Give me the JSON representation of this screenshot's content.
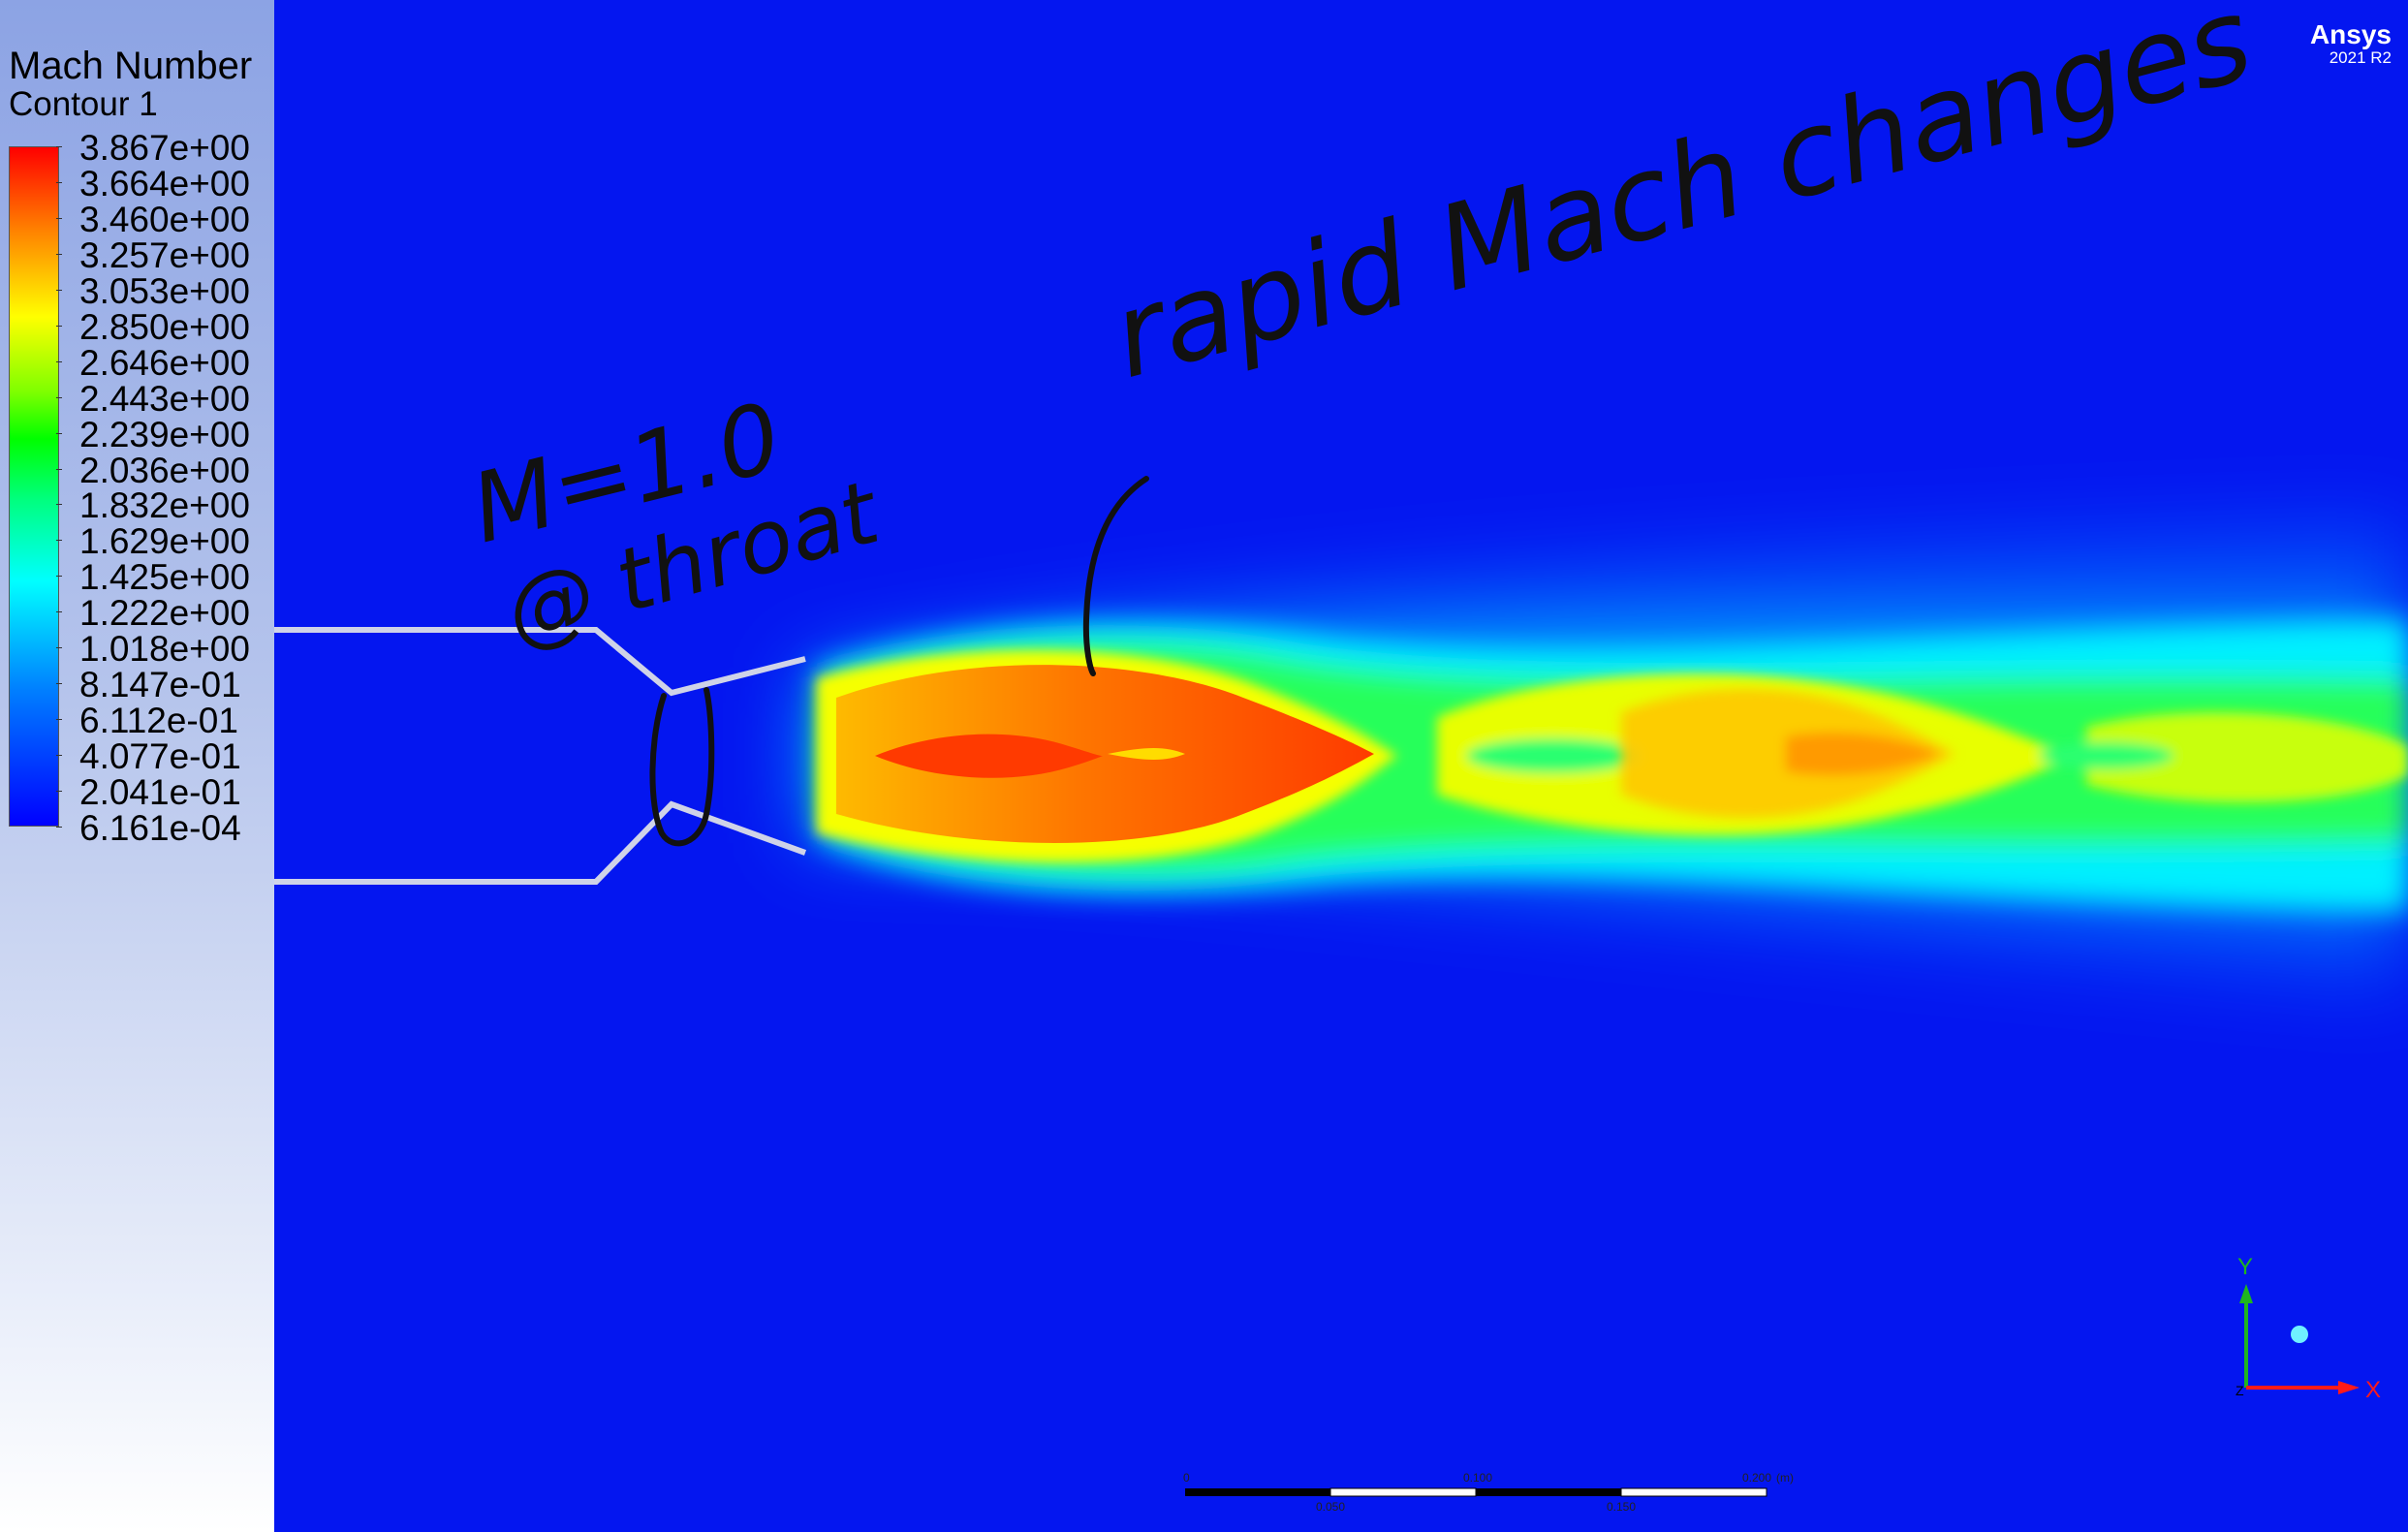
{
  "legend": {
    "title": "Mach Number",
    "subtitle": "Contour 1",
    "labels": [
      "3.867e+00",
      "3.664e+00",
      "3.460e+00",
      "3.257e+00",
      "3.053e+00",
      "2.850e+00",
      "2.646e+00",
      "2.443e+00",
      "2.239e+00",
      "2.036e+00",
      "1.832e+00",
      "1.629e+00",
      "1.425e+00",
      "1.222e+00",
      "1.018e+00",
      "8.147e-01",
      "6.112e-01",
      "4.077e-01",
      "2.041e-01",
      "6.161e-04"
    ]
  },
  "brand": {
    "name": "Ansys",
    "version": "2021 R2"
  },
  "annotations": {
    "throat": "M=1.0 @ throat",
    "changes": "rapid Mach changes"
  },
  "scale_bar": {
    "top_labels": [
      "0",
      "0.100",
      "0.200"
    ],
    "unit": "(m)",
    "bottom_labels": [
      "0.050",
      "0.150"
    ]
  },
  "axes": {
    "y": "Y",
    "x": "X",
    "origin": "Z"
  },
  "colors": {
    "background": "#0416f0",
    "red": "#ff0000",
    "yellow": "#ffff00",
    "green": "#00ff00",
    "cyan": "#00ffff",
    "blue": "#0000ff"
  }
}
